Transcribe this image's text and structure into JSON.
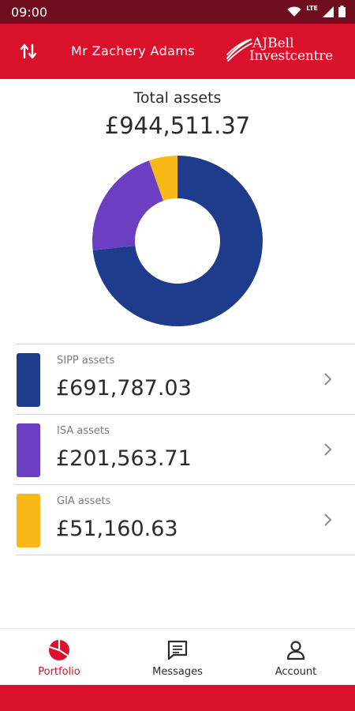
{
  "status_bar": {
    "time": "09:00",
    "network": "LTE"
  },
  "header": {
    "account_name": "Mr Zachery Adams",
    "logo_line1": "AJBell",
    "logo_line2": "Investcentre"
  },
  "summary": {
    "total_label": "Total assets",
    "total_value": "£944,511.37"
  },
  "chart_data": {
    "type": "pie",
    "variant": "donut",
    "categories": [
      "SIPP assets",
      "ISA assets",
      "GIA assets"
    ],
    "values": [
      691787.03,
      201563.71,
      51160.63
    ],
    "colors": [
      "#1f3b8c",
      "#6b3ec2",
      "#f8b918"
    ]
  },
  "assets": [
    {
      "label": "SIPP assets",
      "value": "£691,787.03",
      "color": "#1f3b8c"
    },
    {
      "label": "ISA assets",
      "value": "£201,563.71",
      "color": "#6b3ec2"
    },
    {
      "label": "GIA assets",
      "value": "£51,160.63",
      "color": "#f8b918"
    }
  ],
  "nav": {
    "items": [
      {
        "label": "Portfolio",
        "icon": "pie-chart-icon",
        "active": true
      },
      {
        "label": "Messages",
        "icon": "message-icon",
        "active": false
      },
      {
        "label": "Account",
        "icon": "person-icon",
        "active": false
      }
    ]
  },
  "colors": {
    "brand_red": "#d9112b",
    "status_bar": "#6f0e1e"
  }
}
